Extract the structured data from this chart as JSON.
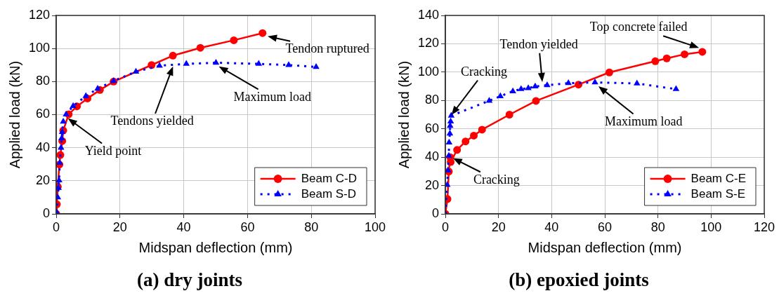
{
  "chart_data": [
    {
      "type": "line",
      "title": "(a) dry joints",
      "xlabel": "Midspan deflection (mm)",
      "ylabel": "Applied load (kN)",
      "xlim": [
        0,
        100
      ],
      "xticks": [
        0,
        20,
        40,
        60,
        80,
        100
      ],
      "ylim": [
        0,
        120
      ],
      "yticks": [
        0,
        20,
        40,
        60,
        80,
        100,
        120
      ],
      "grid": true,
      "legend": "bottom right",
      "series": [
        {
          "name": "Beam C-D",
          "color": "#ff0000",
          "marker": "circle",
          "line_style": "solid",
          "x": [
            0,
            0.2,
            0.5,
            1.0,
            1.3,
            1.9,
            2.2,
            3.9,
            6.5,
            9.8,
            13.7,
            18,
            29.9,
            36.6,
            45.2,
            55.7,
            64.7
          ],
          "values": [
            0,
            5.8,
            16.4,
            29.8,
            35.6,
            44,
            50.4,
            60.2,
            65,
            69.8,
            74.9,
            80,
            90,
            95.7,
            100.4,
            105,
            109.3
          ]
        },
        {
          "name": "Beam S-D",
          "color": "#0000ff",
          "marker": "triangle",
          "line_style": "dotted",
          "x": [
            0.2,
            0.5,
            0.7,
            0.9,
            1.1,
            1.5,
            1.7,
            1.9,
            2.2,
            3.1,
            5.3,
            9.3,
            13,
            18,
            25,
            32.4,
            40.8,
            50.1,
            63.5,
            72.9,
            81.5
          ],
          "values": [
            0.8,
            10,
            15.7,
            20.2,
            30.9,
            40,
            45.7,
            49.5,
            55.8,
            60.1,
            65.2,
            71.2,
            75.7,
            80.4,
            86,
            89.6,
            90.7,
            91.4,
            90.7,
            90,
            88.8
          ]
        }
      ],
      "annotations": [
        {
          "text": "Yield point",
          "x": 3.5,
          "y": 58
        },
        {
          "text": "Tendons yielded",
          "x": 36.7,
          "y": 89.6
        },
        {
          "text": "Maximum load",
          "x": 50.8,
          "y": 89.4
        },
        {
          "text": "Tendon ruptured",
          "x": 66.1,
          "y": 107.5
        }
      ]
    },
    {
      "type": "line",
      "title": "(b) epoxied joints",
      "xlabel": "Midspan deflection (mm)",
      "ylabel": "Applied load (kN)",
      "xlim": [
        0,
        120
      ],
      "xticks": [
        0,
        20,
        40,
        60,
        80,
        100,
        120
      ],
      "ylim": [
        0,
        140
      ],
      "yticks": [
        0,
        20,
        40,
        60,
        80,
        100,
        120,
        140
      ],
      "grid": true,
      "legend": "bottom right",
      "series": [
        {
          "name": "Beam C-E",
          "color": "#ff0000",
          "marker": "circle",
          "line_style": "solid",
          "x": [
            0,
            0.8,
            1.3,
            1.8,
            2,
            4.4,
            7.6,
            10.7,
            13.8,
            24.1,
            34.1,
            50.1,
            61.7,
            79,
            83.3,
            90,
            96.7
          ],
          "values": [
            0,
            10.5,
            29.9,
            40,
            36.6,
            45.1,
            51.1,
            55.2,
            59.4,
            70,
            79.7,
            91.2,
            99.8,
            107.7,
            109.7,
            112.6,
            114.3
          ]
        },
        {
          "name": "Beam S-E",
          "color": "#0000ff",
          "marker": "triangle",
          "line_style": "dotted",
          "x": [
            0,
            0.7,
            1,
            1.3,
            1.4,
            1.7,
            1.8,
            2,
            2.2,
            16.5,
            20.7,
            25.4,
            28.5,
            31.2,
            33.8,
            38.3,
            46.3,
            56.3,
            72.1,
            86.8
          ],
          "values": [
            0,
            20.4,
            30.7,
            40.9,
            50.3,
            56.6,
            62.1,
            65.2,
            69.2,
            79.8,
            83,
            86.5,
            88,
            88.7,
            89.9,
            90.8,
            92.2,
            92.7,
            92,
            88
          ]
        }
      ],
      "annotations": [
        {
          "text": "Top concrete failed",
          "x": 95.7,
          "y": 117
        },
        {
          "text": "Tendon yielded",
          "x": 36.5,
          "y": 92.5
        },
        {
          "text": "Cracking",
          "x": 2.1,
          "y": 69.3
        },
        {
          "text": "Maximum load",
          "x": 57.4,
          "y": 90.4
        },
        {
          "text": "Cracking",
          "x": 2.6,
          "y": 39.6
        }
      ]
    }
  ]
}
